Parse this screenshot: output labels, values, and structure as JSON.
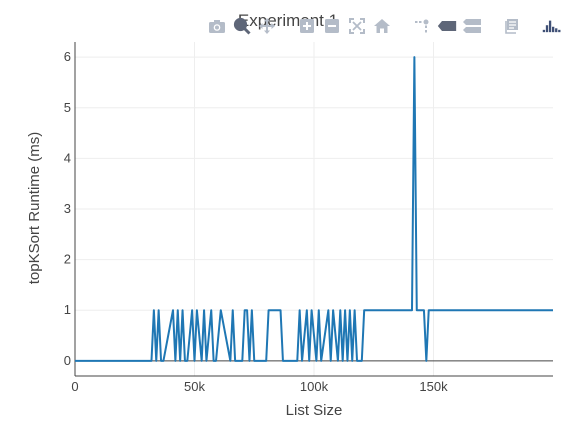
{
  "chart_data": {
    "type": "line",
    "title": "Experiment 1",
    "xlabel": "List Size",
    "ylabel": "topKSort Runtime (ms)",
    "xlim": [
      0,
      200000
    ],
    "ylim": [
      -0.3,
      6.3
    ],
    "grid": true,
    "x_ticks": [
      {
        "value": 0,
        "label": "0"
      },
      {
        "value": 50000,
        "label": "50k"
      },
      {
        "value": 100000,
        "label": "100k"
      },
      {
        "value": 150000,
        "label": "150k"
      }
    ],
    "y_ticks": [
      {
        "value": 0,
        "label": "0"
      },
      {
        "value": 1,
        "label": "1"
      },
      {
        "value": 2,
        "label": "2"
      },
      {
        "value": 3,
        "label": "3"
      },
      {
        "value": 4,
        "label": "4"
      },
      {
        "value": 5,
        "label": "5"
      },
      {
        "value": 6,
        "label": "6"
      }
    ],
    "series": [
      {
        "color": "#1f77b4",
        "x": [
          0,
          32000,
          33000,
          34000,
          35000,
          36000,
          37000,
          41000,
          42000,
          43000,
          44000,
          45000,
          46000,
          47000,
          49000,
          50000,
          51000,
          53000,
          54000,
          55000,
          57000,
          58000,
          59000,
          61000,
          65000,
          66000,
          67000,
          70000,
          71000,
          72000,
          73000,
          74000,
          75000,
          80000,
          81000,
          86000,
          87000,
          93000,
          94000,
          95000,
          97000,
          98000,
          99000,
          101000,
          102000,
          103000,
          106000,
          107000,
          108000,
          110000,
          111000,
          112000,
          113000,
          114000,
          115000,
          116000,
          117000,
          118000,
          120000,
          121000,
          122000,
          141000,
          142000,
          143000,
          144000,
          146000,
          147000,
          148000,
          200000
        ],
        "y": [
          0,
          0,
          1,
          0,
          1,
          0,
          0,
          1,
          0,
          1,
          0,
          1,
          0,
          0,
          1,
          0,
          1,
          0,
          1,
          0,
          1,
          0,
          0,
          1,
          0,
          1,
          0,
          0,
          1,
          1,
          0,
          1,
          0,
          0,
          1,
          1,
          0,
          0,
          1,
          0,
          1,
          0,
          1,
          0,
          1,
          0,
          1,
          0,
          1,
          0,
          1,
          0,
          1,
          0,
          1,
          0,
          1,
          0,
          0,
          1,
          1,
          1,
          6,
          1,
          1,
          1,
          0,
          1,
          1
        ]
      }
    ]
  },
  "modebar": {
    "icons": [
      "camera-icon",
      "zoom-icon",
      "pan-icon",
      "zoom-in-icon",
      "zoom-out-icon",
      "autoscale-icon",
      "home-icon",
      "spikelines-icon",
      "hover-closest-icon",
      "hover-compare-icon",
      "edit-chart-icon",
      "plotly-logo-icon"
    ]
  }
}
